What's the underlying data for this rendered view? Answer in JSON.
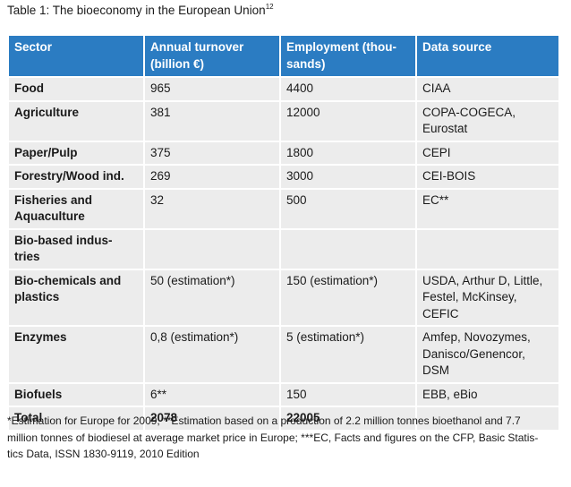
{
  "caption": {
    "text": "Table 1: The bioeconomy in the European Union",
    "footnote_ref": "12"
  },
  "table": {
    "headers": [
      [
        "Sector"
      ],
      [
        "Annual turnover",
        "(billion €)"
      ],
      [
        "Employment (thou-",
        "sands)"
      ],
      [
        "Data source"
      ]
    ],
    "rows": [
      {
        "sector": [
          "Food"
        ],
        "turnover": [
          "965"
        ],
        "employment": [
          "4400"
        ],
        "source": [
          "CIAA"
        ]
      },
      {
        "sector": [
          "Agriculture"
        ],
        "turnover": [
          "381"
        ],
        "employment": [
          "12000"
        ],
        "source": [
          "COPA-COGECA,",
          "Eurostat"
        ]
      },
      {
        "sector": [
          "Paper/Pulp"
        ],
        "turnover": [
          "375"
        ],
        "employment": [
          "1800"
        ],
        "source": [
          "CEPI"
        ]
      },
      {
        "sector": [
          "Forestry/Wood ind."
        ],
        "turnover": [
          "269"
        ],
        "employment": [
          "3000"
        ],
        "source": [
          "CEI-BOIS"
        ]
      },
      {
        "sector": [
          "Fisheries and",
          "Aquaculture"
        ],
        "turnover": [
          "32"
        ],
        "employment": [
          "500"
        ],
        "source": [
          "EC**"
        ]
      },
      {
        "sector": [
          "Bio-based indus-",
          "tries"
        ],
        "turnover": [
          ""
        ],
        "employment": [
          ""
        ],
        "source": [
          ""
        ]
      },
      {
        "sector": [
          "Bio-chemicals and",
          "plastics"
        ],
        "turnover": [
          "50 (estimation*)"
        ],
        "employment": [
          "150 (estimation*)"
        ],
        "source": [
          "USDA, Arthur D, Little,",
          "Festel, McKinsey,",
          "CEFIC"
        ]
      },
      {
        "sector": [
          "Enzymes"
        ],
        "turnover": [
          "0,8 (estimation*)"
        ],
        "employment": [
          "5 (estimation*)"
        ],
        "source": [
          "Amfep, Novozymes,",
          "Danisco/Genencor,",
          "DSM"
        ]
      },
      {
        "sector": [
          "Biofuels"
        ],
        "turnover": [
          "6**"
        ],
        "employment": [
          "150"
        ],
        "source": [
          "EBB, eBio"
        ]
      }
    ],
    "total": {
      "label": "Total",
      "turnover": "2078",
      "employment": "22005",
      "source": ""
    }
  },
  "footnote": {
    "lines": [
      "*Estimation for Europe for 2009; **Estimation based on a production of 2.2 million tonnes bioethanol and 7.7",
      "million tonnes of biodiesel at average market price in Europe; ***EC, Facts and figures on the CFP, Basic Statis-",
      "tics Data, ISSN 1830-9119, 2010 Edition"
    ]
  }
}
